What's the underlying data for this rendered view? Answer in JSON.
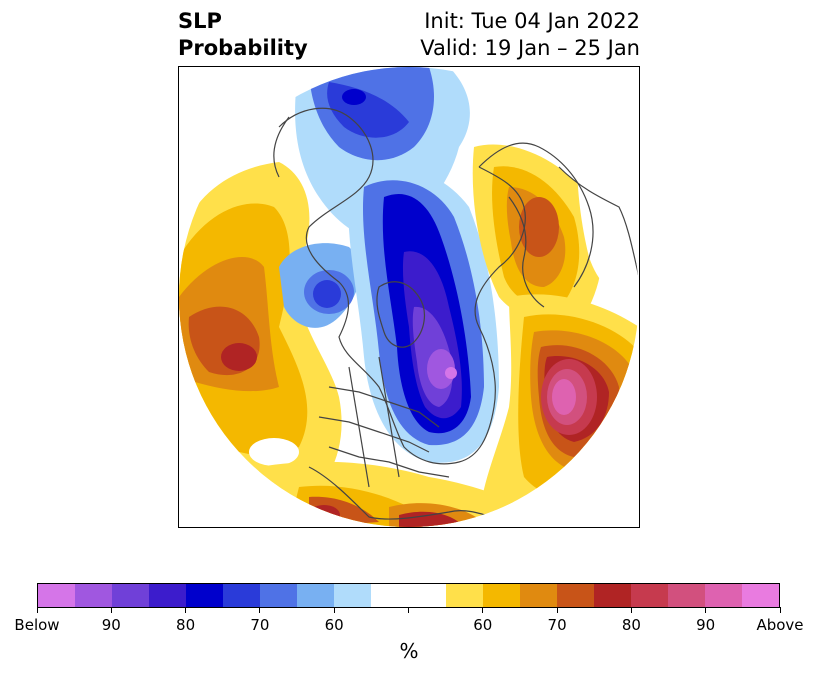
{
  "header": {
    "title_lines": [
      "SLP",
      "Probability"
    ],
    "info_lines": [
      "Init: Tue 04 Jan 2022",
      "Valid: 19 Jan – 25 Jan"
    ]
  },
  "map": {
    "projection": "north-polar-stereographic",
    "boundaries": "coastlines and country/state borders",
    "fill_field": "SLP probability shading"
  },
  "legend": {
    "unit": "%",
    "colors": [
      "#d575e8",
      "#a057e0",
      "#7040d8",
      "#3c1ccc",
      "#0000cc",
      "#2a3bd9",
      "#4f72e6",
      "#78b0f2",
      "#b0dcfb",
      "#ffffff",
      "#ffffff",
      "#ffe04a",
      "#f4b800",
      "#e08a10",
      "#c85418",
      "#b02424",
      "#c63a4e",
      "#d2507e",
      "#de62b0",
      "#e97be0"
    ],
    "tick_labels": [
      "Below",
      "90",
      "80",
      "70",
      "60",
      "",
      "60",
      "70",
      "80",
      "90",
      "Above"
    ]
  }
}
